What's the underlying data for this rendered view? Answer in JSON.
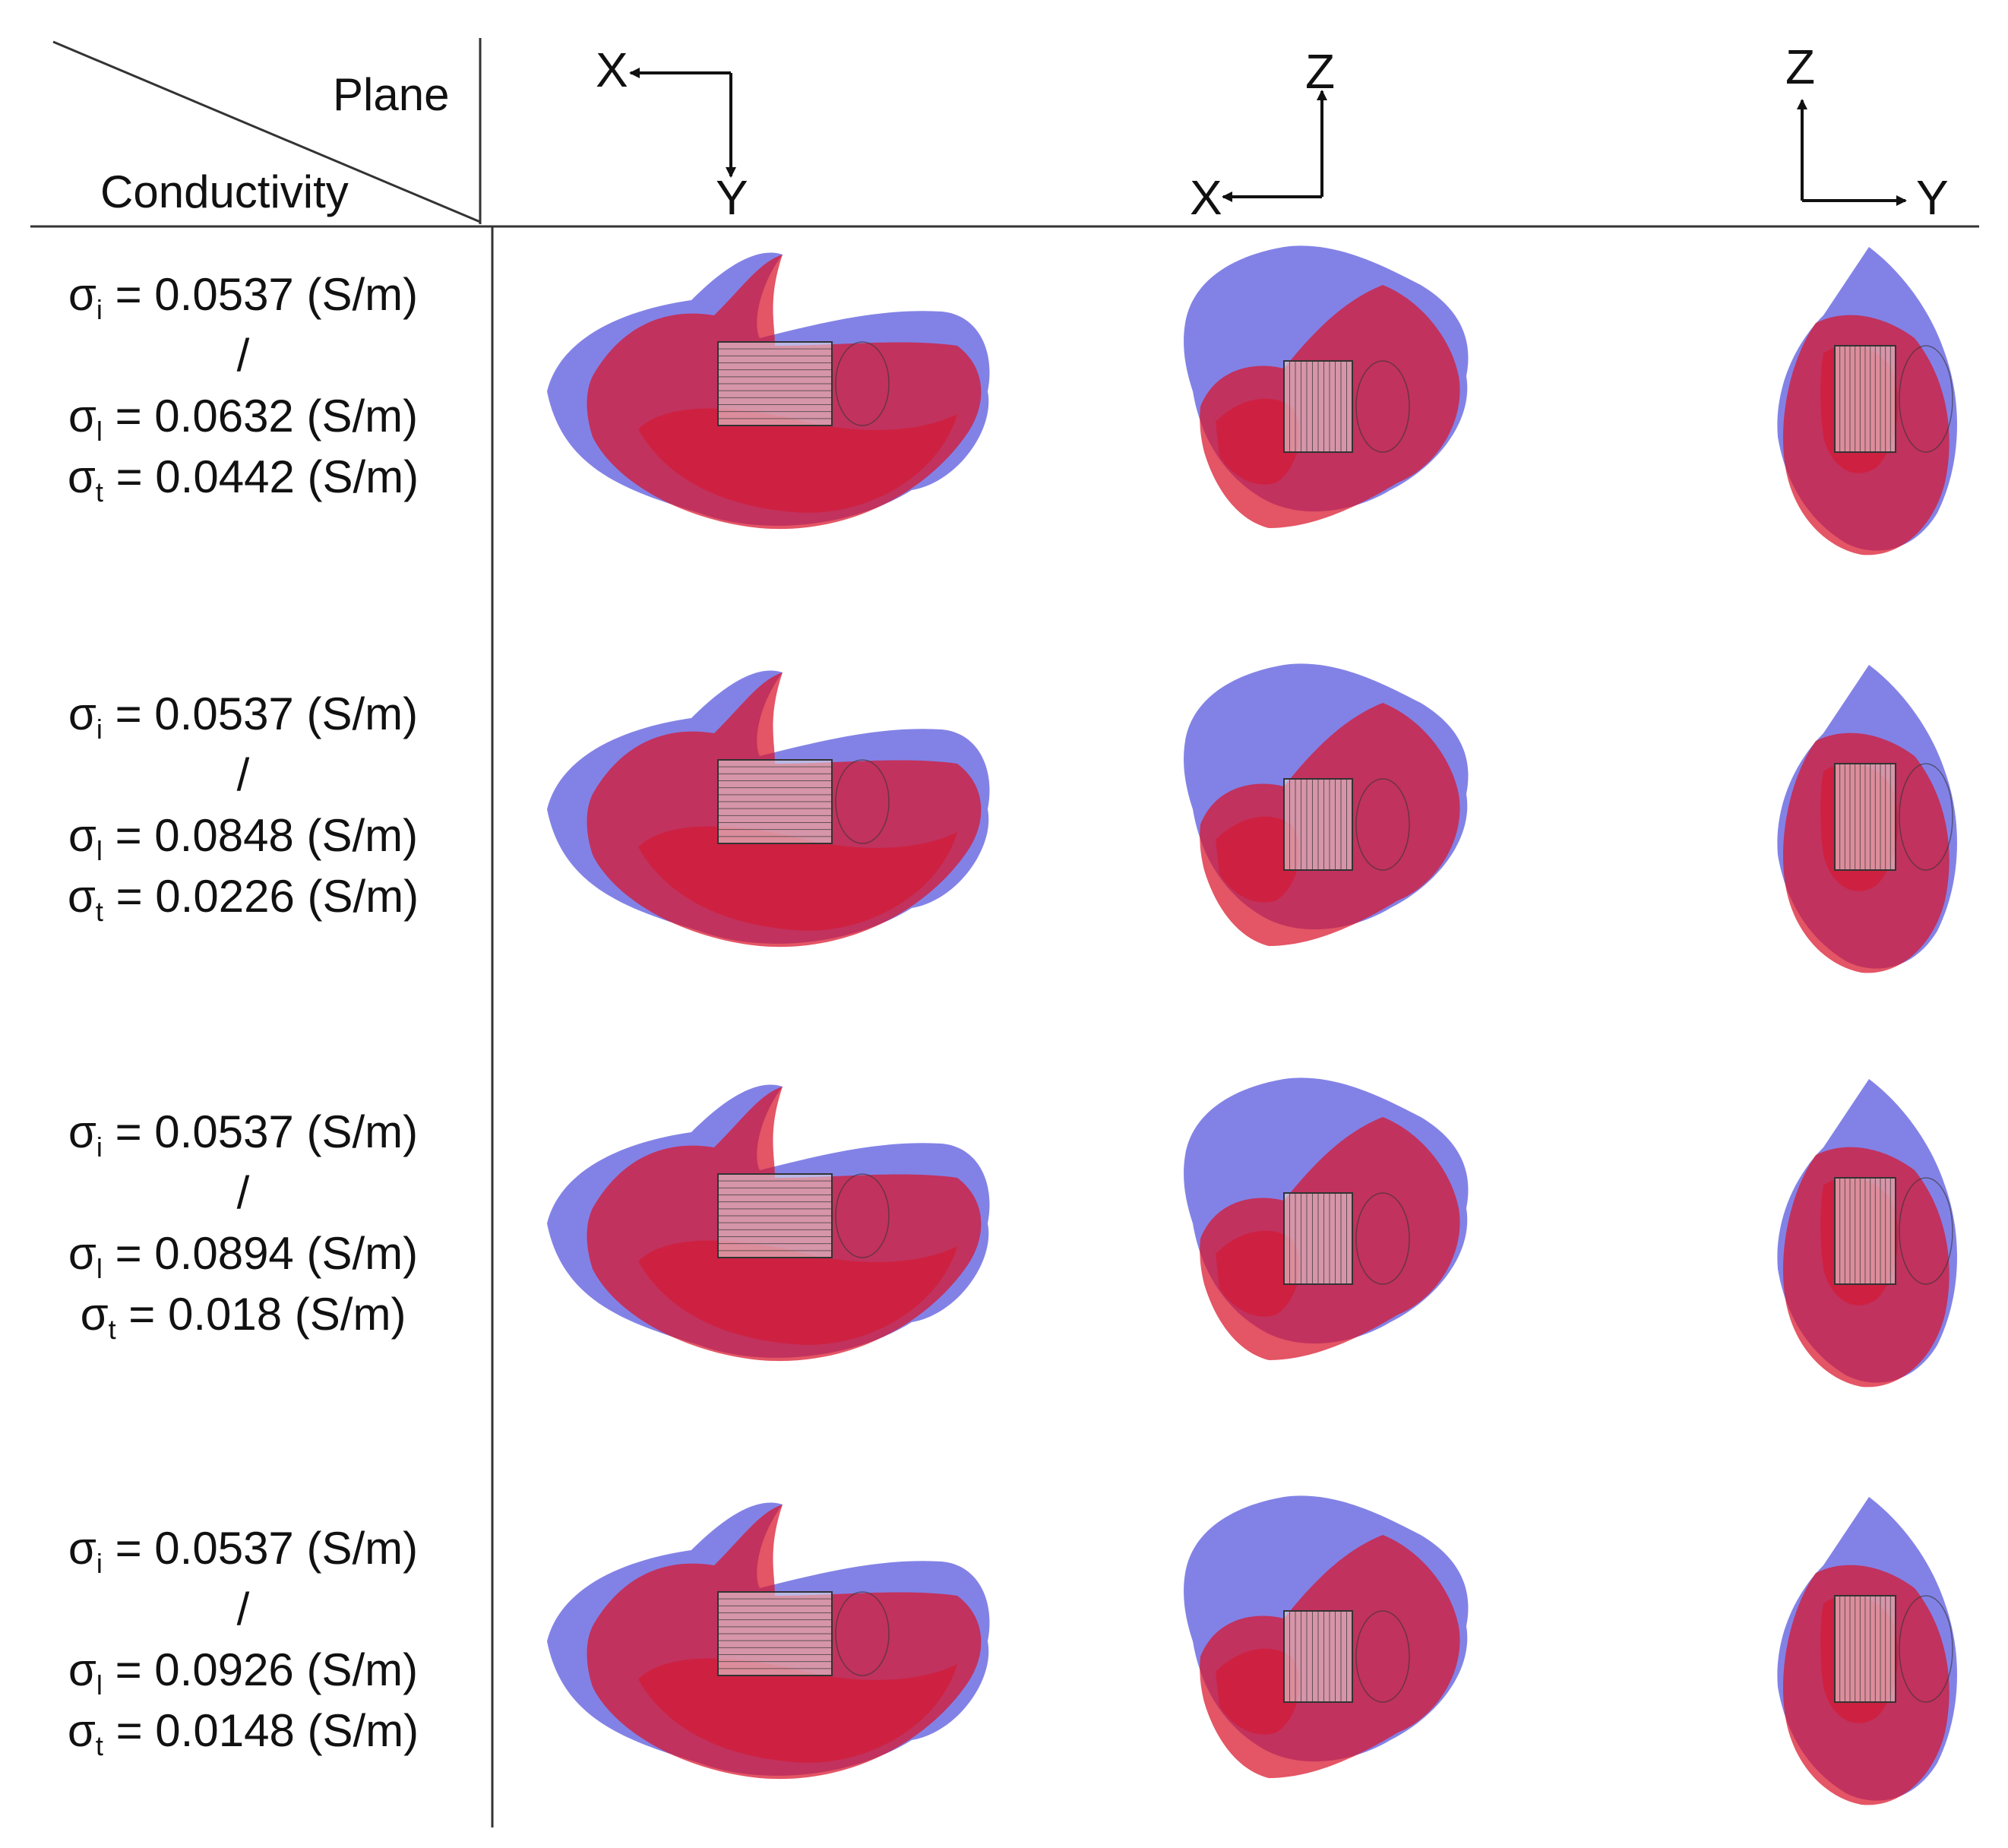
{
  "header": {
    "plane_label": "Plane",
    "conductivity_label": "Conductivity"
  },
  "axes": [
    {
      "horizontal": "X",
      "vertical": "Y"
    },
    {
      "horizontal": "X",
      "vertical": "Z"
    },
    {
      "horizontal": "Y",
      "vertical": "Z"
    }
  ],
  "rows": [
    {
      "sigma_i": " = 0.0537 (S/m)",
      "separator": "/",
      "sigma_l": " = 0.0632 (S/m)",
      "sigma_t": " = 0.0442 (S/m)"
    },
    {
      "sigma_i": " = 0.0537 (S/m)",
      "separator": "/",
      "sigma_l": " = 0.0848 (S/m)",
      "sigma_t": " = 0.0226 (S/m)"
    },
    {
      "sigma_i": " = 0.0537 (S/m)",
      "separator": "/",
      "sigma_l": " = 0.0894 (S/m)",
      "sigma_t": " = 0.018 (S/m)"
    },
    {
      "sigma_i": " = 0.0537 (S/m)",
      "separator": "/",
      "sigma_l": " = 0.0926 (S/m)",
      "sigma_t": " = 0.0148 (S/m)"
    }
  ],
  "symbols": {
    "sigma": "σ",
    "sub_i": "i",
    "sub_l": "l",
    "sub_t": "t"
  },
  "colors": {
    "red_volume": "#d9142a",
    "blue_volume": "#2f2fd6",
    "line": "#333333"
  }
}
